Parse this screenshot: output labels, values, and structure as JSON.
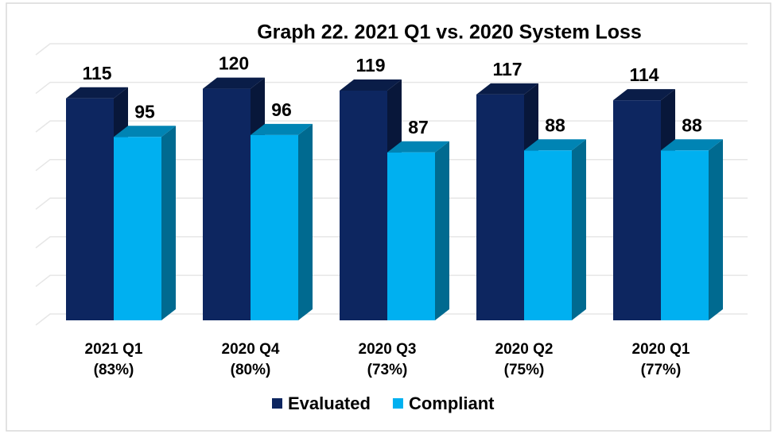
{
  "chart_data": {
    "type": "bar3d",
    "title": "Graph 22. 2021 Q1 vs. 2020 System Loss",
    "categories": [
      [
        "2021 Q1",
        "(83%)"
      ],
      [
        "2020 Q4",
        "(80%)"
      ],
      [
        "2020 Q3",
        "(73%)"
      ],
      [
        "2020 Q2",
        "(75%)"
      ],
      [
        "2020 Q1",
        "(77%)"
      ]
    ],
    "series": [
      {
        "name": "Evaluated",
        "color": "#0d2660",
        "values": [
          115,
          120,
          119,
          117,
          114
        ]
      },
      {
        "name": "Compliant",
        "color": "#00b0f0",
        "values": [
          95,
          96,
          87,
          88,
          88
        ]
      }
    ],
    "ylim": [
      0,
      140
    ],
    "yticks": [
      0,
      20,
      40,
      60,
      80,
      100,
      120,
      140
    ],
    "grid": true,
    "legend": "bottom"
  }
}
